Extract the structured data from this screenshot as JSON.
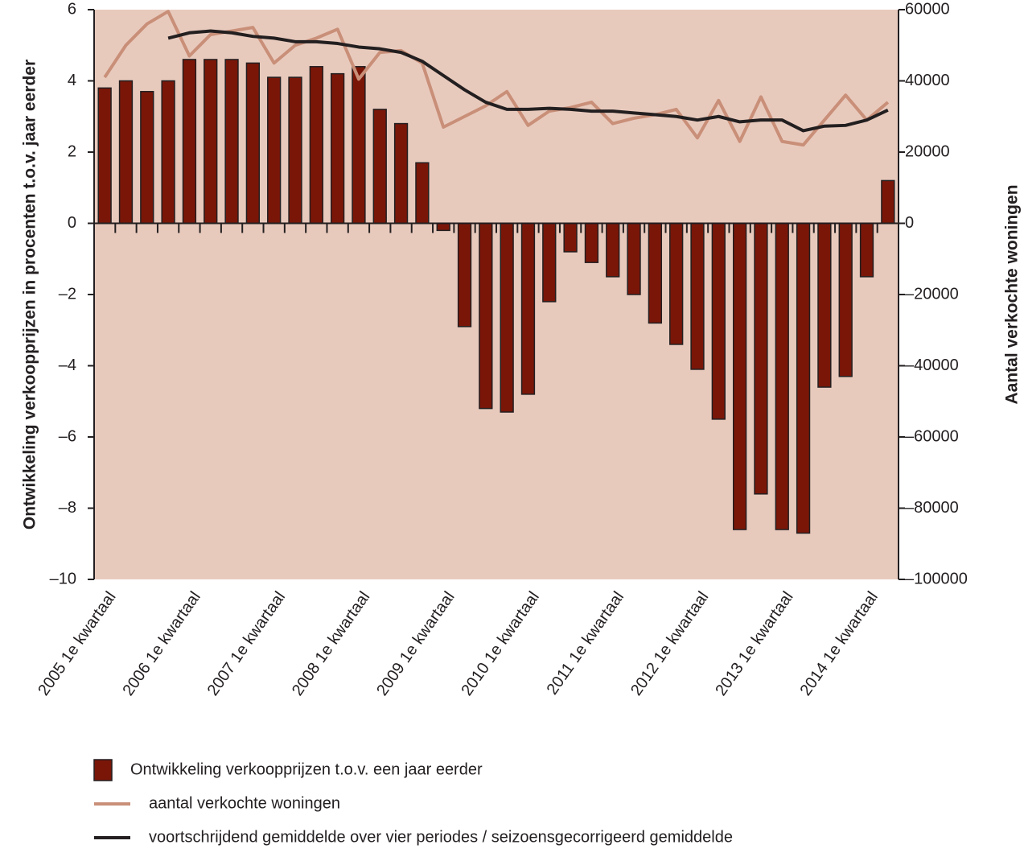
{
  "chart_data": {
    "type": "bar",
    "y_label": "Ontwikkeling verkoopprijzen in procenten t.o.v. jaar eerder",
    "y2_label": "Aantal verkochte woningen",
    "categories": [
      "2005 1e kwartaal",
      null,
      null,
      null,
      "2006 1e kwartaal",
      null,
      null,
      null,
      "2007 1e kwartaal",
      null,
      null,
      null,
      "2008 1e kwartaal",
      null,
      null,
      null,
      "2009 1e kwartaal",
      null,
      null,
      null,
      "2010 1e kwartaal",
      null,
      null,
      null,
      "2011 1e kwartaal",
      null,
      null,
      null,
      "2012 1e kwartaal",
      null,
      null,
      null,
      "2013 1e kwartaal",
      null,
      null,
      null,
      "2014 1e kwartaal",
      null
    ],
    "ylim": [
      -10,
      6
    ],
    "yticks": [
      {
        "value": -10,
        "label": "–10"
      },
      {
        "value": -8,
        "label": "–8"
      },
      {
        "value": -6,
        "label": "–6"
      },
      {
        "value": -4,
        "label": "–4"
      },
      {
        "value": -2,
        "label": "–2"
      },
      0,
      2,
      4,
      6
    ],
    "y2lim": [
      -100000,
      60000
    ],
    "y2ticks": [
      {
        "value": -100000,
        "label": "–100000"
      },
      {
        "value": -80000,
        "label": "–80000"
      },
      {
        "value": -60000,
        "label": "–60000"
      },
      {
        "value": -40000,
        "label": "–40000"
      },
      {
        "value": -20000,
        "label": "–20000"
      },
      0,
      20000,
      40000,
      60000
    ],
    "background": "#e8cabd",
    "series": [
      {
        "name": "Ontwikkeling verkoopprijzen t.o.v. een jaar eerder",
        "type": "bar",
        "color": "#7a1608",
        "values": [
          3.8,
          4.0,
          3.7,
          4.0,
          4.6,
          4.6,
          4.6,
          4.5,
          4.1,
          4.1,
          4.4,
          4.2,
          4.4,
          3.2,
          2.8,
          1.7,
          -0.2,
          -2.9,
          -5.2,
          -5.3,
          -4.8,
          -2.2,
          -0.8,
          -1.1,
          -1.5,
          -2.0,
          -2.8,
          -3.4,
          -4.1,
          -5.5,
          -8.6,
          -7.6,
          -8.6,
          -8.7,
          -4.6,
          -4.3,
          -1.5,
          1.2
        ]
      },
      {
        "name": "aantal verkochte woningen",
        "type": "line",
        "axis": "y2",
        "color": "#c98f78",
        "values": [
          41000,
          50000,
          56000,
          59500,
          47000,
          53000,
          54000,
          55000,
          45000,
          50000,
          52000,
          54500,
          40500,
          48000,
          48500,
          45000,
          27000,
          30000,
          33000,
          37000,
          27500,
          31500,
          32500,
          34000,
          28000,
          29500,
          30500,
          32000,
          24000,
          34500,
          23000,
          35500,
          23000,
          22000,
          29000,
          36000,
          29000,
          34000
        ]
      },
      {
        "name": "voortschrijdend gemiddelde over vier periodes / seizoensgecorrigeerd gemiddelde",
        "type": "line",
        "axis": "y2",
        "color": "#231f20",
        "values": [
          null,
          null,
          null,
          52000,
          53500,
          54000,
          53500,
          52500,
          52000,
          51000,
          51000,
          50500,
          49500,
          49000,
          48000,
          45500,
          41500,
          37500,
          34000,
          32000,
          32000,
          32300,
          32000,
          31500,
          31500,
          31000,
          30500,
          30000,
          29000,
          30000,
          28500,
          29000,
          29000,
          26000,
          27300,
          27500,
          29000,
          31800
        ]
      }
    ]
  }
}
